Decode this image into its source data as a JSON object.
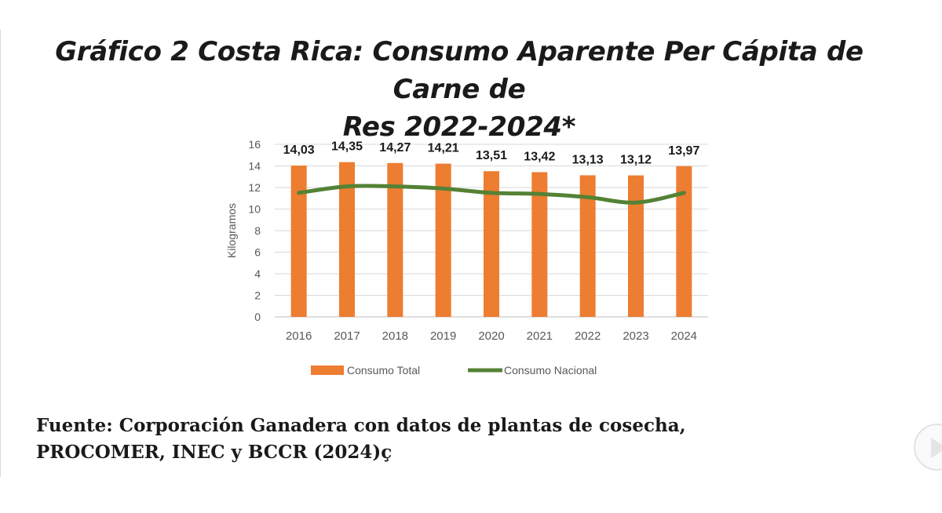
{
  "page": {
    "title_line1": "Gráfico 2 Costa Rica: Consumo Aparente Per Cápita de Carne de",
    "title_line2": "Res 2022-2024*",
    "source_line1": "Fuente: Corporación Ganadera con datos de plantas de cosecha,",
    "source_line2": "PROCOMER, INEC y BCCR (2024)ç",
    "play_icon": "play-icon"
  },
  "chart_data": {
    "type": "bar",
    "title": "",
    "xlabel": "",
    "ylabel": "Kilogramos",
    "ylim": [
      0,
      16
    ],
    "yticks": [
      0,
      2,
      4,
      6,
      8,
      10,
      12,
      14,
      16
    ],
    "grid": true,
    "legend_position": "bottom",
    "categories": [
      "2016",
      "2017",
      "2018",
      "2019",
      "2020",
      "2021",
      "2022",
      "2023",
      "2024"
    ],
    "series": [
      {
        "name": "Consumo Total",
        "type": "bar",
        "color": "#ED7D31",
        "values": [
          14.03,
          14.35,
          14.27,
          14.21,
          13.51,
          13.42,
          13.13,
          13.12,
          13.97
        ],
        "labels": [
          "14,03",
          "14,35",
          "14,27",
          "14,21",
          "13,51",
          "13,42",
          "13,13",
          "13,12",
          "13,97"
        ]
      },
      {
        "name": "Consumo Nacional",
        "type": "line",
        "color": "#548235",
        "values": [
          11.5,
          12.1,
          12.1,
          11.9,
          11.5,
          11.4,
          11.1,
          10.6,
          11.5
        ]
      }
    ]
  }
}
